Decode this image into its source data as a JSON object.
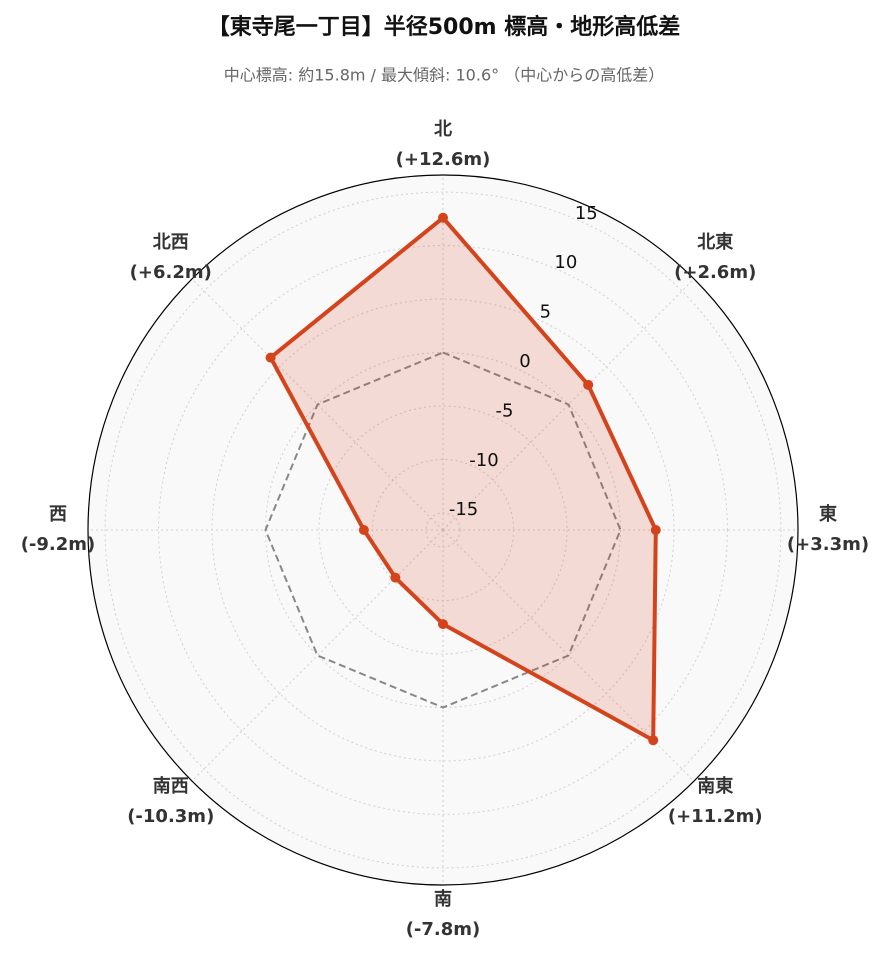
{
  "chart_data": {
    "type": "radar",
    "title": "【東寺尾一丁目】半径500m 標高・地形高低差",
    "subtitle": "中心標高: 約15.8m / 最大傾斜: 10.6° （中心からの高低差）",
    "categories": [
      "北",
      "北東",
      "東",
      "南東",
      "南",
      "南西",
      "西",
      "北西"
    ],
    "values": [
      12.6,
      2.6,
      3.3,
      11.2,
      -7.8,
      -10.3,
      -9.2,
      6.2
    ],
    "value_labels": [
      "(+12.6m)",
      "(+2.6m)",
      "(+3.3m)",
      "(+11.2m)",
      "(-7.8m)",
      "(-10.3m)",
      "(-9.2m)",
      "(+6.2m)"
    ],
    "color": "#d4441c",
    "zero_line": 0,
    "ylim": [
      -16.6,
      16.6
    ],
    "yticks": [
      -15,
      -10,
      -5,
      0,
      5,
      10,
      15
    ],
    "grid": true
  }
}
